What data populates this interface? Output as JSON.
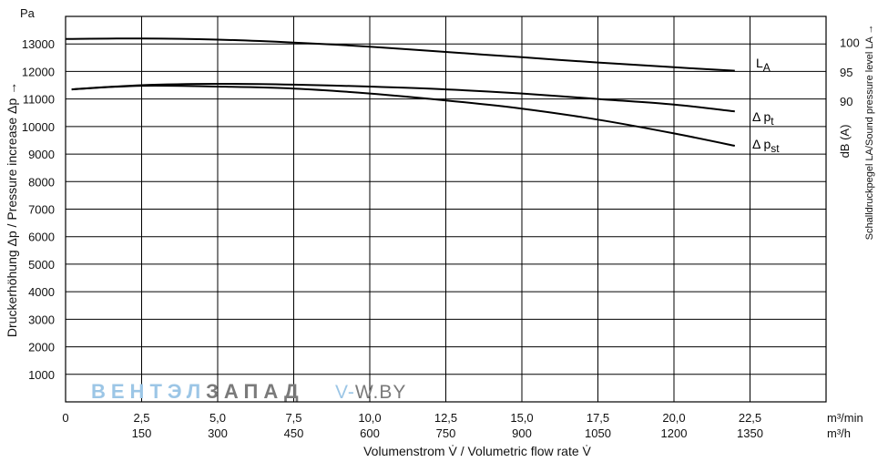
{
  "chart_data": {
    "type": "line",
    "left_axis": {
      "unit": "Pa",
      "label": "Druckerhöhung Δp / Pressure increase  Δp →",
      "ticks": [
        1000,
        2000,
        3000,
        4000,
        5000,
        6000,
        7000,
        8000,
        9000,
        10000,
        11000,
        12000,
        13000
      ],
      "ylim": [
        0,
        14000
      ]
    },
    "right_axis": {
      "unit": "dB (A)",
      "label": "Schalldruckpegel LA/Sound pressure level LA →",
      "ticks": [
        90,
        95,
        100
      ]
    },
    "x_axis": {
      "label": "Volumenstrom V̇ / Volumetric flow rate V̇",
      "unit_primary": "m³/min",
      "unit_secondary": "m³/h",
      "ticks_primary": [
        "0",
        "2,5",
        "5,0",
        "7,5",
        "10,0",
        "12,5",
        "15,0",
        "17,5",
        "20,0",
        "22,5"
      ],
      "ticks_secondary": [
        "150",
        "300",
        "450",
        "600",
        "750",
        "900",
        "1050",
        "1200",
        "1350"
      ],
      "xlim": [
        0,
        25
      ]
    },
    "series": [
      {
        "name": "LA",
        "axis": "right",
        "x": [
          0,
          2.5,
          5.0,
          7.5,
          10.0,
          12.5,
          15.0,
          17.5,
          20.0,
          22.0
        ],
        "y": [
          100.6,
          100.7,
          100.5,
          100.0,
          99.3,
          98.4,
          97.5,
          96.6,
          95.8,
          95.2
        ]
      },
      {
        "name": "Δ pt",
        "axis": "left",
        "x": [
          0.2,
          2.5,
          5.0,
          7.5,
          10.0,
          12.5,
          15.0,
          17.5,
          20.0,
          22.0
        ],
        "y": [
          11350,
          11500,
          11550,
          11520,
          11450,
          11350,
          11200,
          11000,
          10800,
          10550
        ]
      },
      {
        "name": "Δ pst",
        "axis": "left",
        "x": [
          0.2,
          2.5,
          5.0,
          7.5,
          10.0,
          12.5,
          15.0,
          17.5,
          20.0,
          22.0
        ],
        "y": [
          11350,
          11480,
          11450,
          11380,
          11200,
          10950,
          10650,
          10250,
          9750,
          9300
        ]
      }
    ],
    "curve_labels": {
      "la_main": "L",
      "la_sub": "A",
      "pt_main": "Δ p",
      "pt_sub": "t",
      "pst_main": "Δ p",
      "pst_sub": "st"
    },
    "grid": true
  },
  "watermark": {
    "part1": "ВЕНТЭЛ",
    "part2": "ЗАПАД",
    "part3": "V-",
    "part4": "W.BY",
    "color1": "#9cc6e6",
    "color2": "#7a7a7a"
  }
}
